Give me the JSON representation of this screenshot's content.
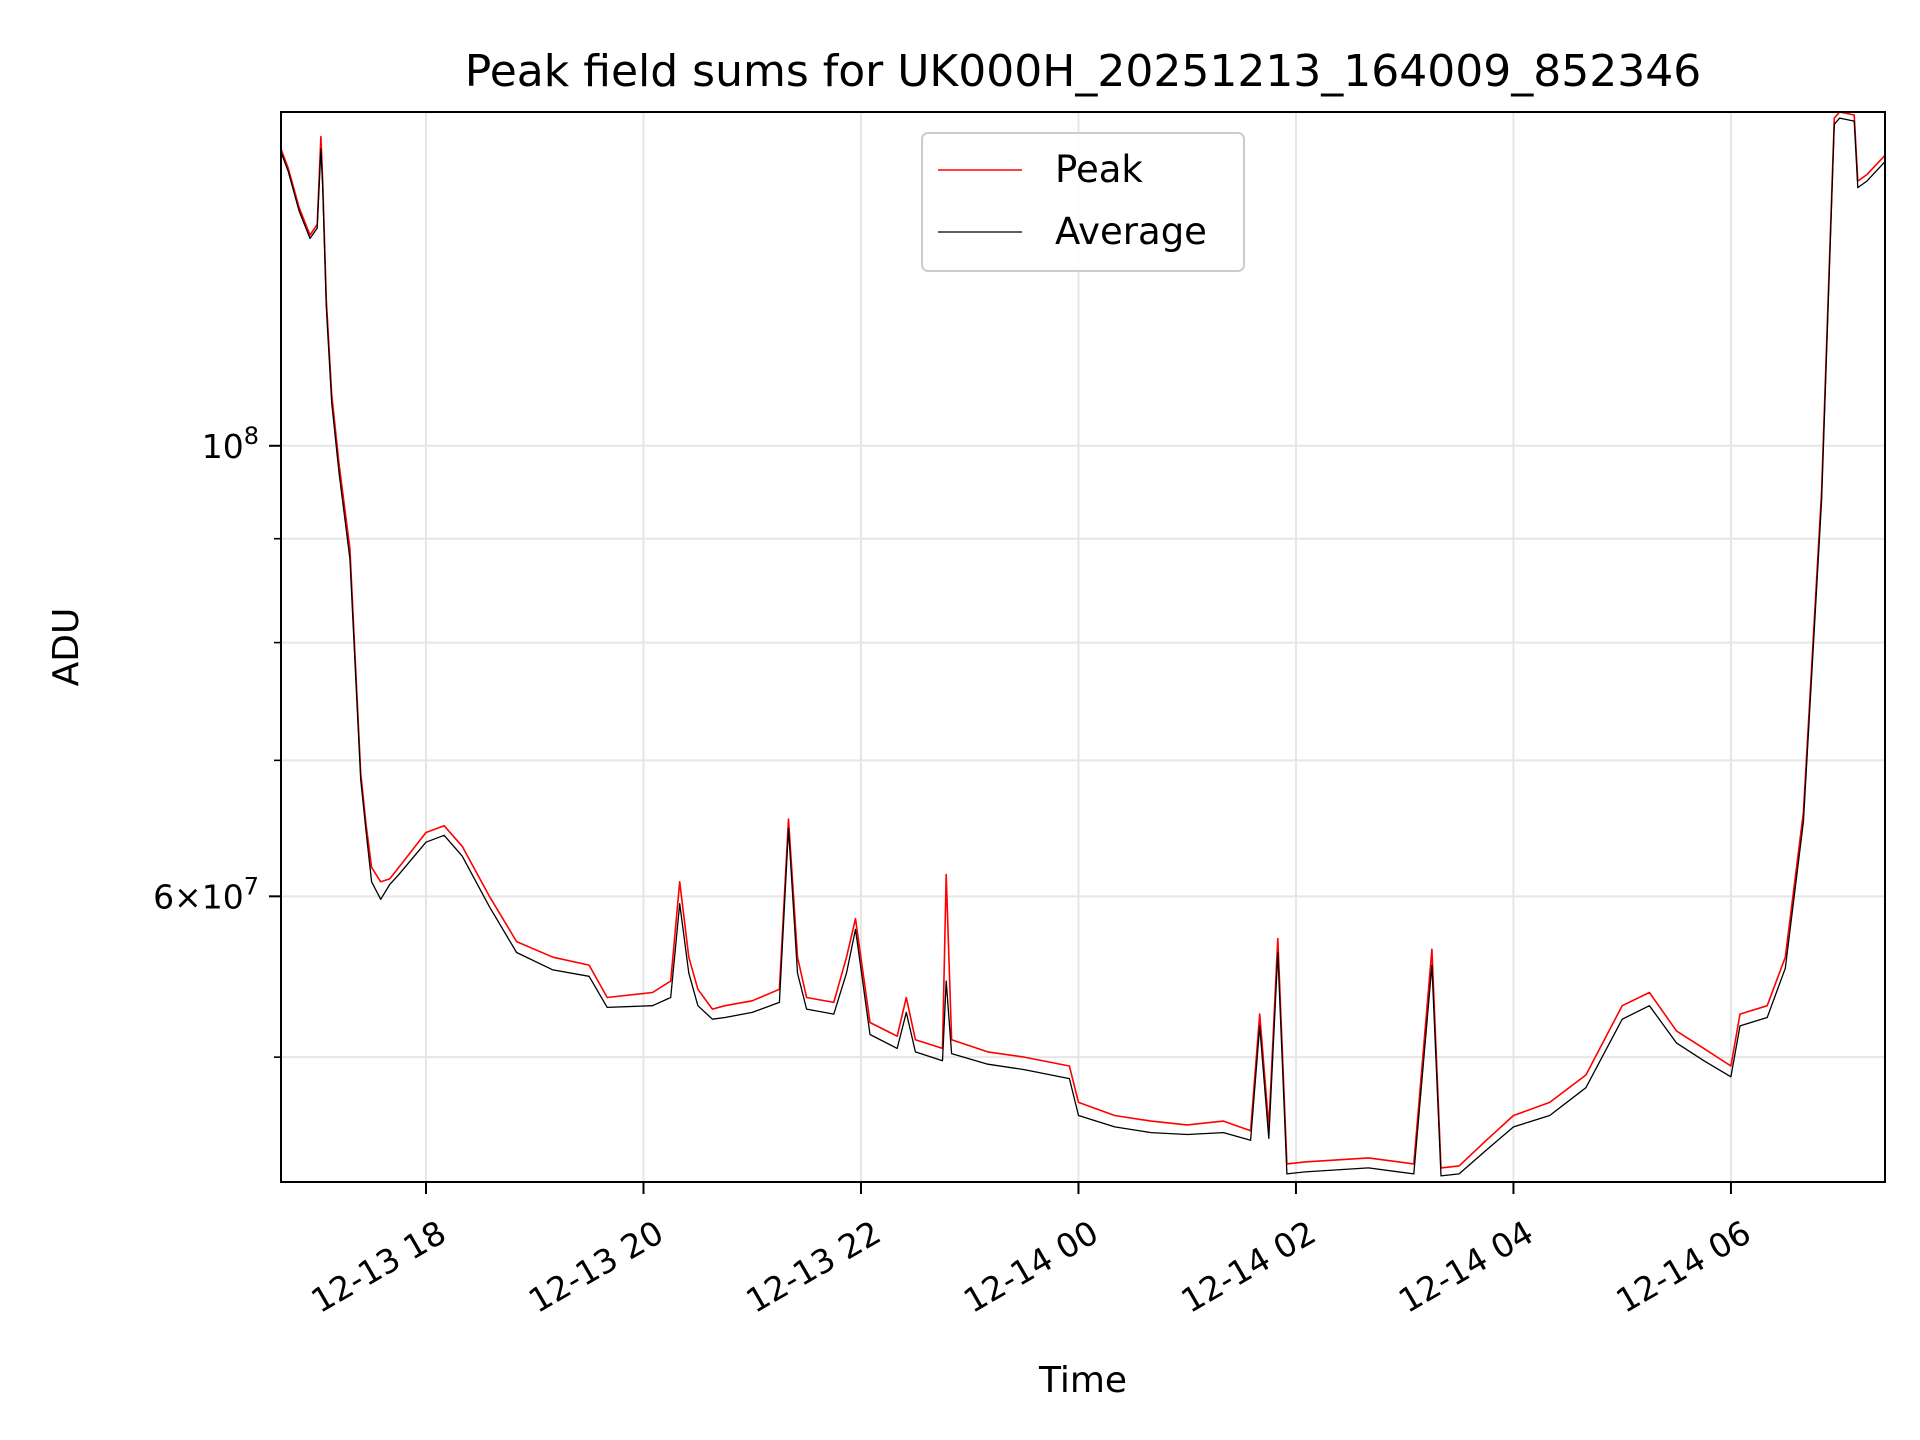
{
  "chart_data": {
    "type": "line",
    "title": "Peak field sums for UK000H_20251213_164009_852346",
    "xlabel": "Time",
    "ylabel": "ADU",
    "y_scale": "log",
    "xlim": [
      "2025-12-13 16:40",
      "2025-12-14 07:25"
    ],
    "ylim": [
      43400000,
      146000000
    ],
    "x_ticks": [
      "12-13 18",
      "12-13 20",
      "12-13 22",
      "12-14 00",
      "12-14 02",
      "12-14 04",
      "12-14 06"
    ],
    "x_tick_times": [
      "2025-12-13 18:00",
      "2025-12-13 20:00",
      "2025-12-13 22:00",
      "2025-12-14 00:00",
      "2025-12-14 02:00",
      "2025-12-14 04:00",
      "2025-12-14 06:00"
    ],
    "y_ticks": [
      {
        "value": 100000000,
        "base": "10",
        "exp": "8",
        "coef": ""
      },
      {
        "value": 60000000,
        "base": "10",
        "exp": "7",
        "coef": "6"
      }
    ],
    "y_minor_ticks": [
      50000000,
      70000000,
      80000000,
      90000000
    ],
    "grid": true,
    "legend_position": "upper-center",
    "series": [
      {
        "name": "Peak",
        "color": "#ff0000",
        "x": [
          "2025-12-13 16:40",
          "2025-12-13 16:44",
          "2025-12-13 16:50",
          "2025-12-13 16:56",
          "2025-12-13 17:00",
          "2025-12-13 17:02",
          "2025-12-13 17:03",
          "2025-12-13 17:05",
          "2025-12-13 17:08",
          "2025-12-13 17:12",
          "2025-12-13 17:18",
          "2025-12-13 17:24",
          "2025-12-13 17:27",
          "2025-12-13 17:30",
          "2025-12-13 17:35",
          "2025-12-13 17:40",
          "2025-12-13 17:45",
          "2025-12-13 18:00",
          "2025-12-13 18:10",
          "2025-12-13 18:20",
          "2025-12-13 18:35",
          "2025-12-13 18:50",
          "2025-12-13 19:10",
          "2025-12-13 19:30",
          "2025-12-13 19:40",
          "2025-12-13 20:05",
          "2025-12-13 20:15",
          "2025-12-13 20:20",
          "2025-12-13 20:25",
          "2025-12-13 20:30",
          "2025-12-13 20:38",
          "2025-12-13 20:45",
          "2025-12-13 21:00",
          "2025-12-13 21:15",
          "2025-12-13 21:20",
          "2025-12-13 21:25",
          "2025-12-13 21:30",
          "2025-12-13 21:45",
          "2025-12-13 21:52",
          "2025-12-13 21:57",
          "2025-12-13 22:05",
          "2025-12-13 22:20",
          "2025-12-13 22:25",
          "2025-12-13 22:30",
          "2025-12-13 22:45",
          "2025-12-13 22:47",
          "2025-12-13 22:50",
          "2025-12-13 23:10",
          "2025-12-13 23:30",
          "2025-12-13 23:55",
          "2025-12-14 00:00",
          "2025-12-14 00:20",
          "2025-12-14 00:40",
          "2025-12-14 01:00",
          "2025-12-14 01:20",
          "2025-12-14 01:35",
          "2025-12-14 01:40",
          "2025-12-14 01:45",
          "2025-12-14 01:50",
          "2025-12-14 01:55",
          "2025-12-14 02:05",
          "2025-12-14 02:40",
          "2025-12-14 03:05",
          "2025-12-14 03:15",
          "2025-12-14 03:20",
          "2025-12-14 03:30",
          "2025-12-14 03:45",
          "2025-12-14 04:00",
          "2025-12-14 04:20",
          "2025-12-14 04:40",
          "2025-12-14 05:00",
          "2025-12-14 05:15",
          "2025-12-14 05:30",
          "2025-12-14 05:45",
          "2025-12-14 06:00",
          "2025-12-14 06:05",
          "2025-12-14 06:20",
          "2025-12-14 06:30",
          "2025-12-14 06:40",
          "2025-12-14 06:50",
          "2025-12-14 06:57",
          "2025-12-14 07:00",
          "2025-12-14 07:08",
          "2025-12-14 07:10",
          "2025-12-14 07:15",
          "2025-12-14 07:25"
        ],
        "values": [
          140000000,
          137000000,
          131000000,
          127000000,
          128500000,
          142000000,
          135000000,
          118000000,
          106000000,
          98000000,
          89000000,
          69000000,
          65000000,
          62000000,
          61000000,
          61200000,
          62000000,
          64500000,
          65000000,
          63500000,
          60000000,
          57000000,
          56000000,
          55500000,
          53500000,
          53800000,
          54500000,
          61000000,
          56000000,
          54000000,
          52800000,
          53000000,
          53300000,
          54000000,
          65500000,
          56000000,
          53500000,
          53200000,
          56000000,
          58500000,
          52000000,
          51200000,
          53500000,
          51000000,
          50500000,
          61500000,
          51000000,
          50300000,
          50000000,
          49500000,
          47500000,
          46800000,
          46500000,
          46300000,
          46500000,
          46000000,
          52500000,
          46200000,
          57200000,
          44300000,
          44400000,
          44600000,
          44300000,
          56500000,
          44100000,
          44200000,
          45500000,
          46800000,
          47500000,
          49000000,
          53000000,
          53800000,
          51500000,
          50500000,
          49500000,
          52500000,
          53000000,
          56000000,
          66000000,
          95000000,
          145000000,
          146000000,
          145500000,
          135000000,
          136000000,
          139000000
        ],
        "stroke_width": 1.6
      },
      {
        "name": "Average",
        "color": "#000000",
        "x": [
          "2025-12-13 16:40",
          "2025-12-13 16:44",
          "2025-12-13 16:50",
          "2025-12-13 16:56",
          "2025-12-13 17:00",
          "2025-12-13 17:02",
          "2025-12-13 17:03",
          "2025-12-13 17:05",
          "2025-12-13 17:08",
          "2025-12-13 17:12",
          "2025-12-13 17:18",
          "2025-12-13 17:24",
          "2025-12-13 17:27",
          "2025-12-13 17:30",
          "2025-12-13 17:35",
          "2025-12-13 17:40",
          "2025-12-13 17:45",
          "2025-12-13 18:00",
          "2025-12-13 18:10",
          "2025-12-13 18:20",
          "2025-12-13 18:35",
          "2025-12-13 18:50",
          "2025-12-13 19:10",
          "2025-12-13 19:30",
          "2025-12-13 19:40",
          "2025-12-13 20:05",
          "2025-12-13 20:15",
          "2025-12-13 20:20",
          "2025-12-13 20:25",
          "2025-12-13 20:30",
          "2025-12-13 20:38",
          "2025-12-13 20:45",
          "2025-12-13 21:00",
          "2025-12-13 21:15",
          "2025-12-13 21:20",
          "2025-12-13 21:25",
          "2025-12-13 21:30",
          "2025-12-13 21:45",
          "2025-12-13 21:52",
          "2025-12-13 21:57",
          "2025-12-13 22:05",
          "2025-12-13 22:20",
          "2025-12-13 22:25",
          "2025-12-13 22:30",
          "2025-12-13 22:45",
          "2025-12-13 22:47",
          "2025-12-13 22:50",
          "2025-12-13 23:10",
          "2025-12-13 23:30",
          "2025-12-13 23:55",
          "2025-12-14 00:00",
          "2025-12-14 00:20",
          "2025-12-14 00:40",
          "2025-12-14 01:00",
          "2025-12-14 01:20",
          "2025-12-14 01:35",
          "2025-12-14 01:40",
          "2025-12-14 01:45",
          "2025-12-14 01:50",
          "2025-12-14 01:55",
          "2025-12-14 02:05",
          "2025-12-14 02:40",
          "2025-12-14 03:05",
          "2025-12-14 03:15",
          "2025-12-14 03:20",
          "2025-12-14 03:30",
          "2025-12-14 03:45",
          "2025-12-14 04:00",
          "2025-12-14 04:20",
          "2025-12-14 04:40",
          "2025-12-14 05:00",
          "2025-12-14 05:15",
          "2025-12-14 05:30",
          "2025-12-14 05:45",
          "2025-12-14 06:00",
          "2025-12-14 06:05",
          "2025-12-14 06:20",
          "2025-12-14 06:30",
          "2025-12-14 06:40",
          "2025-12-14 06:50",
          "2025-12-14 06:57",
          "2025-12-14 07:00",
          "2025-12-14 07:08",
          "2025-12-14 07:10",
          "2025-12-14 07:15",
          "2025-12-14 07:25"
        ],
        "values": [
          139500000,
          136500000,
          130500000,
          126500000,
          128000000,
          140000000,
          134000000,
          117000000,
          105000000,
          97000000,
          88000000,
          68500000,
          64500000,
          61000000,
          59800000,
          60800000,
          61500000,
          63800000,
          64300000,
          62800000,
          59300000,
          56300000,
          55200000,
          54800000,
          52900000,
          53000000,
          53500000,
          59500000,
          55000000,
          53000000,
          52200000,
          52300000,
          52600000,
          53200000,
          64800000,
          55000000,
          52800000,
          52500000,
          55000000,
          57800000,
          51300000,
          50500000,
          52600000,
          50300000,
          49800000,
          54500000,
          50200000,
          49600000,
          49300000,
          48800000,
          46800000,
          46200000,
          45900000,
          45800000,
          45900000,
          45500000,
          51800000,
          45600000,
          56300000,
          43800000,
          43900000,
          44100000,
          43800000,
          55500000,
          43700000,
          43800000,
          45000000,
          46200000,
          46800000,
          48300000,
          52200000,
          53000000,
          50800000,
          49800000,
          48900000,
          51800000,
          52300000,
          55300000,
          65300000,
          94000000,
          144000000,
          145000000,
          144500000,
          134000000,
          135000000,
          138000000
        ],
        "stroke_width": 1.3
      }
    ]
  }
}
